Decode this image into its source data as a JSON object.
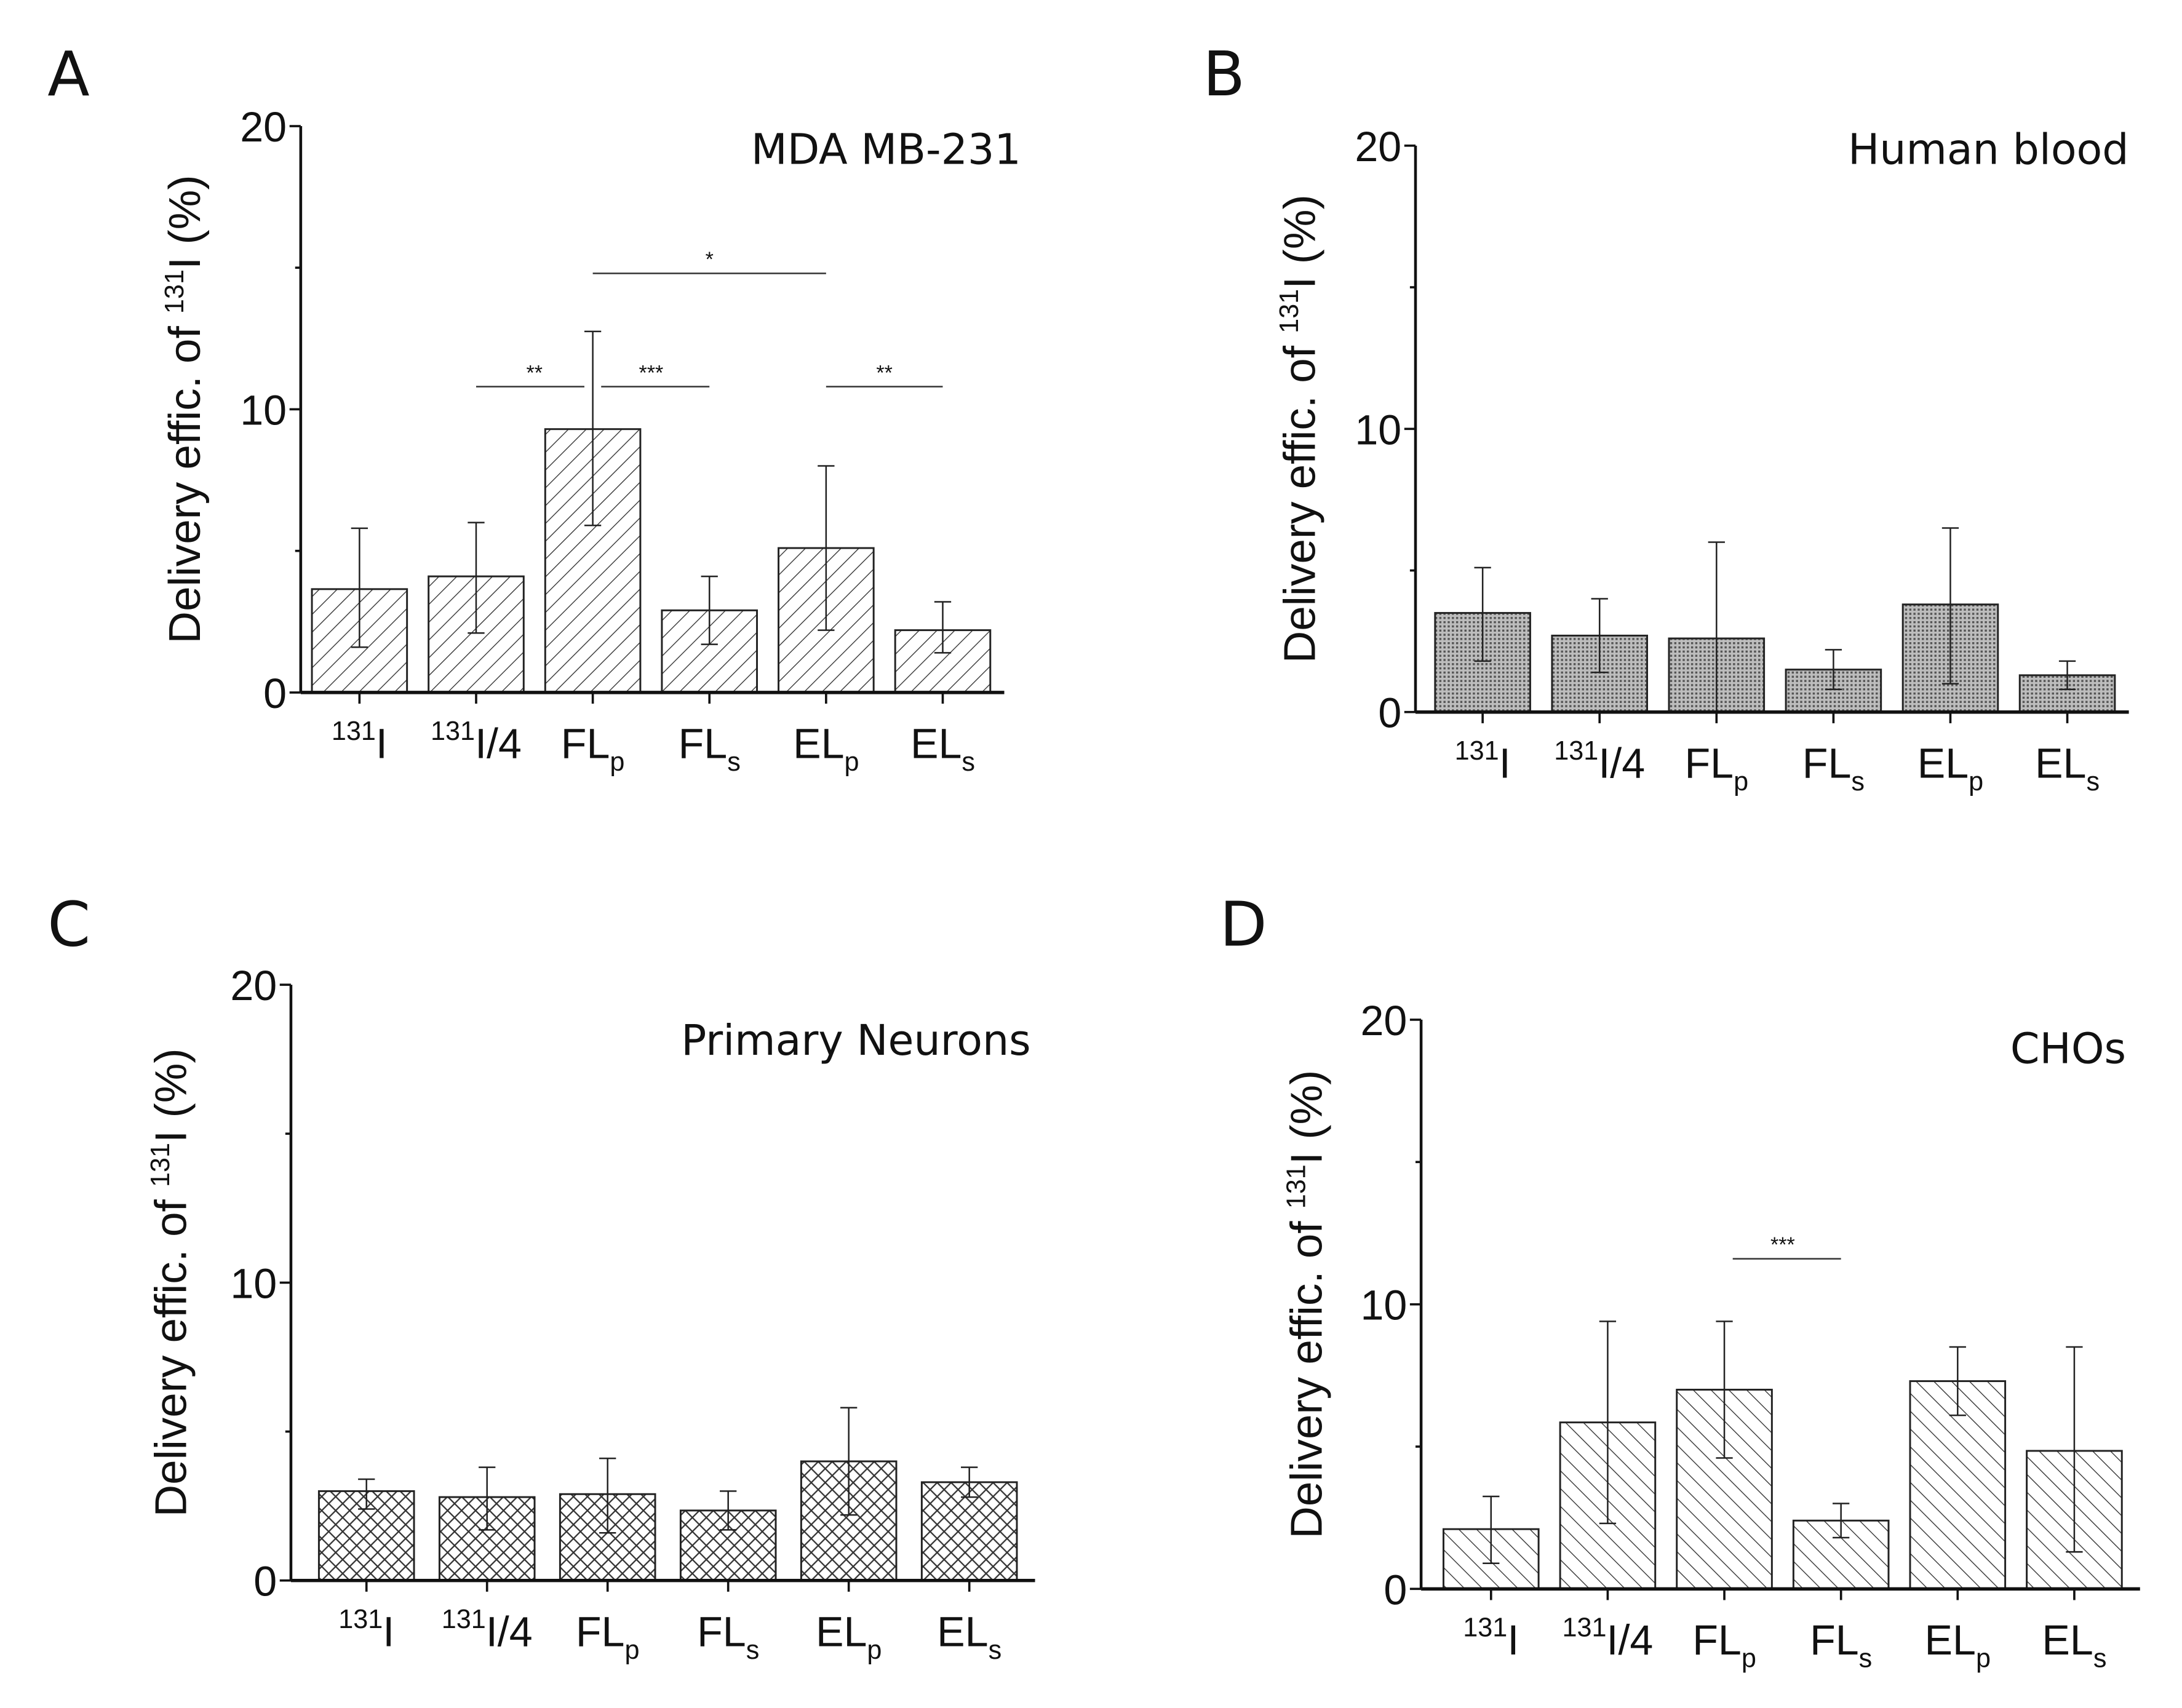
{
  "chart_data": [
    {
      "type": "bar",
      "panel_letter": "A",
      "title": "MDA MB-231",
      "ylabel": {
        "pre": "Delivery effic. of ",
        "sup": "131",
        "post": "I (%)"
      },
      "ylim": [
        0,
        20
      ],
      "yticks": [
        "0",
        "10",
        "20"
      ],
      "pattern": "diagonal-back",
      "categories": [
        {
          "sup": "131",
          "main": "I",
          "sub": ""
        },
        {
          "sup": "131",
          "main": "I/4",
          "sub": ""
        },
        {
          "sup": "",
          "main": "FL",
          "sub": "p"
        },
        {
          "sup": "",
          "main": "FL",
          "sub": "s"
        },
        {
          "sup": "",
          "main": "EL",
          "sub": "p"
        },
        {
          "sup": "",
          "main": "EL",
          "sub": "s"
        }
      ],
      "values": [
        3.65,
        4.1,
        9.3,
        2.9,
        5.1,
        2.2
      ],
      "error_upper": [
        5.8,
        6.0,
        12.75,
        4.1,
        8.0,
        3.2
      ],
      "error_lower": [
        1.6,
        2.1,
        5.9,
        1.7,
        2.2,
        1.4
      ],
      "significance": [
        {
          "from": 1,
          "to": 2,
          "y": 10.8,
          "label": "**"
        },
        {
          "from": 2,
          "to": 3,
          "y": 10.8,
          "label": "***"
        },
        {
          "from": 2,
          "to": 4,
          "y": 14.8,
          "label": "*"
        },
        {
          "from": 4,
          "to": 5,
          "y": 10.8,
          "label": "**"
        }
      ]
    },
    {
      "type": "bar",
      "panel_letter": "B",
      "title": "Human blood",
      "ylabel": {
        "pre": "Delivery effic. of ",
        "sup": "131",
        "post": "I (%)"
      },
      "ylim": [
        0,
        20
      ],
      "yticks": [
        "0",
        "10",
        "20"
      ],
      "pattern": "dense-grey",
      "categories": [
        {
          "sup": "131",
          "main": "I",
          "sub": ""
        },
        {
          "sup": "131",
          "main": "I/4",
          "sub": ""
        },
        {
          "sup": "",
          "main": "FL",
          "sub": "p"
        },
        {
          "sup": "",
          "main": "FL",
          "sub": "s"
        },
        {
          "sup": "",
          "main": "EL",
          "sub": "p"
        },
        {
          "sup": "",
          "main": "EL",
          "sub": "s"
        }
      ],
      "values": [
        3.5,
        2.7,
        2.6,
        1.5,
        3.8,
        1.3
      ],
      "error_upper": [
        5.1,
        4.0,
        6.0,
        2.2,
        6.5,
        1.8
      ],
      "error_lower": [
        1.8,
        1.4,
        0.0,
        0.8,
        1.0,
        0.8
      ],
      "significance": []
    },
    {
      "type": "bar",
      "panel_letter": "C",
      "title": "Primary Neurons",
      "ylabel": {
        "pre": "Delivery effic. of ",
        "sup": "131",
        "post": "I (%)"
      },
      "ylim": [
        0,
        20
      ],
      "yticks": [
        "0",
        "10",
        "20"
      ],
      "pattern": "crosshatch",
      "categories": [
        {
          "sup": "131",
          "main": "I",
          "sub": ""
        },
        {
          "sup": "131",
          "main": "I/4",
          "sub": ""
        },
        {
          "sup": "",
          "main": "FL",
          "sub": "p"
        },
        {
          "sup": "",
          "main": "FL",
          "sub": "s"
        },
        {
          "sup": "",
          "main": "EL",
          "sub": "p"
        },
        {
          "sup": "",
          "main": "EL",
          "sub": "s"
        }
      ],
      "values": [
        3.0,
        2.8,
        2.9,
        2.35,
        4.0,
        3.3
      ],
      "error_upper": [
        3.4,
        3.8,
        4.1,
        3.0,
        5.8,
        3.8
      ],
      "error_lower": [
        2.4,
        1.7,
        1.6,
        1.7,
        2.2,
        2.8
      ],
      "significance": []
    },
    {
      "type": "bar",
      "panel_letter": "D",
      "title": "CHOs",
      "ylabel": {
        "pre": "Delivery effic. of ",
        "sup": "131",
        "post": "I (%)"
      },
      "ylim": [
        0,
        20
      ],
      "yticks": [
        "0",
        "10",
        "20"
      ],
      "pattern": "diagonal-fwd",
      "categories": [
        {
          "sup": "131",
          "main": "I",
          "sub": ""
        },
        {
          "sup": "131",
          "main": "I/4",
          "sub": ""
        },
        {
          "sup": "",
          "main": "FL",
          "sub": "p"
        },
        {
          "sup": "",
          "main": "FL",
          "sub": "s"
        },
        {
          "sup": "",
          "main": "EL",
          "sub": "p"
        },
        {
          "sup": "",
          "main": "EL",
          "sub": "s"
        }
      ],
      "values": [
        2.1,
        5.85,
        7.0,
        2.4,
        7.3,
        4.85
      ],
      "error_upper": [
        3.25,
        9.4,
        9.4,
        3.0,
        8.5,
        8.5
      ],
      "error_lower": [
        0.9,
        2.3,
        4.6,
        1.8,
        6.1,
        1.3
      ],
      "significance": [
        {
          "from": 2,
          "to": 3,
          "y": 11.6,
          "label": "***"
        }
      ]
    }
  ]
}
